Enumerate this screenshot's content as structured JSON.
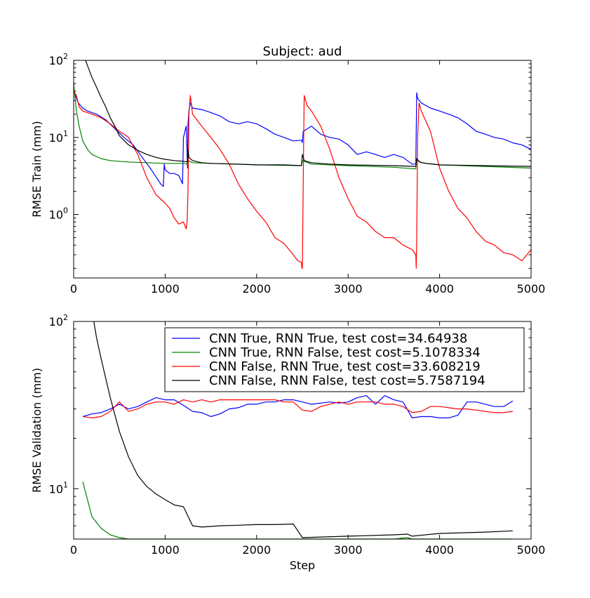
{
  "chart_data": [
    {
      "type": "line",
      "title": "Subject: aud",
      "xlabel": "",
      "ylabel": "RMSE Train (mm)",
      "xlim": [
        0,
        5000
      ],
      "ylim": [
        0.15,
        100
      ],
      "yscale": "log",
      "xticks": [
        "0",
        "1000",
        "2000",
        "3000",
        "4000",
        "5000"
      ],
      "yticks": [
        {
          "value": 1,
          "label": "10",
          "exp": "0"
        },
        {
          "value": 10,
          "label": "10",
          "exp": "1"
        },
        {
          "value": 100,
          "label": "10",
          "exp": "2"
        }
      ],
      "grid": false,
      "series": [
        {
          "color": "#0000ff",
          "x": [
            0,
            50,
            100,
            150,
            250,
            350,
            450,
            550,
            650,
            750,
            850,
            950,
            980,
            990,
            1000,
            1050,
            1100,
            1150,
            1190,
            1200,
            1230,
            1245,
            1250,
            1260,
            1275,
            1300,
            1400,
            1500,
            1600,
            1700,
            1800,
            1900,
            2000,
            2100,
            2200,
            2300,
            2400,
            2490,
            2500,
            2510,
            2600,
            2700,
            2800,
            2900,
            3000,
            3100,
            3200,
            3300,
            3400,
            3500,
            3600,
            3700,
            3740,
            3750,
            3760,
            3800,
            3900,
            4000,
            4100,
            4200,
            4300,
            4400,
            4500,
            4600,
            4700,
            4800,
            4900,
            5000
          ],
          "y": [
            40,
            28,
            24,
            22,
            20,
            17,
            13,
            10,
            8,
            5.5,
            3.8,
            2.5,
            2.3,
            4.5,
            3.8,
            3.4,
            3.4,
            3.2,
            2.5,
            10,
            14,
            4,
            15,
            22,
            28,
            24,
            23,
            21,
            19,
            16,
            15,
            16,
            15,
            13,
            11,
            10,
            9,
            9.2,
            8.6,
            12,
            14,
            11,
            10,
            9.5,
            8,
            6,
            6.5,
            6,
            5.5,
            6,
            5.5,
            4.5,
            4.5,
            38,
            32,
            28,
            24,
            22,
            20,
            18,
            15,
            12,
            11,
            10,
            9.5,
            8.5,
            8,
            7
          ]
        },
        {
          "color": "#008000",
          "x": [
            0,
            30,
            60,
            100,
            150,
            200,
            300,
            400,
            600,
            800,
            1000,
            1200,
            1245,
            1250,
            1300,
            1500,
            2000,
            2490,
            2500,
            2600,
            3000,
            3500,
            3740,
            3750,
            3800,
            4000,
            4500,
            5000
          ],
          "y": [
            50,
            22,
            14,
            9,
            7,
            6,
            5.3,
            5,
            4.8,
            4.7,
            4.6,
            4.6,
            4.5,
            5,
            4.7,
            4.6,
            4.4,
            4.3,
            5,
            4.5,
            4.3,
            4.1,
            3.9,
            5.2,
            4.7,
            4.4,
            4.2,
            4
          ]
        },
        {
          "color": "#ff0000",
          "x": [
            0,
            30,
            60,
            100,
            150,
            200,
            300,
            400,
            500,
            550,
            600,
            700,
            800,
            900,
            1000,
            1050,
            1100,
            1150,
            1200,
            1230,
            1240,
            1250,
            1260,
            1275,
            1300,
            1400,
            1500,
            1600,
            1700,
            1800,
            1900,
            2000,
            2100,
            2200,
            2300,
            2400,
            2450,
            2490,
            2495,
            2500,
            2510,
            2520,
            2550,
            2600,
            2700,
            2800,
            2900,
            3000,
            3100,
            3200,
            3300,
            3400,
            3500,
            3600,
            3700,
            3740,
            3745,
            3750,
            3760,
            3775,
            3800,
            3900,
            4000,
            4100,
            4200,
            4300,
            4400,
            4500,
            4600,
            4700,
            4800,
            4900,
            5000
          ],
          "y": [
            40,
            35,
            25,
            22,
            21,
            20,
            18,
            15,
            12,
            11,
            10,
            6,
            3,
            1.8,
            1.4,
            1.2,
            0.9,
            0.75,
            0.8,
            0.65,
            0.8,
            2,
            20,
            35,
            20,
            14,
            10,
            7,
            4.5,
            2.5,
            1.6,
            1.1,
            0.8,
            0.5,
            0.42,
            0.3,
            0.25,
            0.24,
            0.2,
            0.2,
            3,
            35,
            26,
            22,
            14,
            7,
            3,
            1.6,
            0.95,
            0.8,
            0.6,
            0.5,
            0.5,
            0.4,
            0.35,
            0.3,
            0.2,
            0.5,
            10,
            28,
            22,
            12,
            4,
            2,
            1.2,
            0.9,
            0.6,
            0.45,
            0.4,
            0.32,
            0.3,
            0.25,
            0.35
          ]
        },
        {
          "color": "#000000",
          "x": [
            130,
            160,
            200,
            250,
            300,
            350,
            400,
            450,
            500,
            600,
            700,
            800,
            900,
            1000,
            1100,
            1200,
            1245,
            1250,
            1260,
            1300,
            1400,
            1500,
            1800,
            2000,
            2300,
            2490,
            2500,
            2520,
            2600,
            2800,
            3000,
            3500,
            3740,
            3750,
            3780,
            3850,
            4000,
            4500,
            5000
          ],
          "y": [
            100,
            80,
            60,
            45,
            33,
            25,
            18,
            14,
            10.5,
            8,
            6.8,
            6,
            5.5,
            5.2,
            5,
            4.9,
            4.8,
            7,
            5.5,
            5,
            4.7,
            4.6,
            4.5,
            4.4,
            4.4,
            4.3,
            6,
            5,
            4.7,
            4.5,
            4.4,
            4.3,
            4.2,
            5.3,
            4.8,
            4.6,
            4.4,
            4.3,
            4.2
          ]
        }
      ]
    },
    {
      "type": "line",
      "title": "",
      "xlabel": "Step",
      "ylabel": "RMSE Validation (mm)",
      "xlim": [
        0,
        5000
      ],
      "ylim": [
        5,
        100
      ],
      "yscale": "log",
      "xticks": [
        "0",
        "1000",
        "2000",
        "3000",
        "4000",
        "5000"
      ],
      "yticks": [
        {
          "value": 10,
          "label": "10",
          "exp": "1"
        },
        {
          "value": 100,
          "label": "10",
          "exp": "2"
        }
      ],
      "grid": false,
      "legend_position": "top-right",
      "series": [
        {
          "name": "CNN True, RNN True, test cost=34.64938",
          "color": "#0000ff",
          "x": [
            100,
            200,
            300,
            400,
            500,
            600,
            700,
            800,
            900,
            1000,
            1100,
            1200,
            1300,
            1400,
            1500,
            1600,
            1700,
            1800,
            1900,
            2000,
            2100,
            2200,
            2300,
            2400,
            2500,
            2600,
            2700,
            2800,
            2900,
            3000,
            3100,
            3200,
            3300,
            3400,
            3500,
            3600,
            3700,
            3800,
            3900,
            4000,
            4100,
            4200,
            4300,
            4400,
            4500,
            4600,
            4700,
            4800
          ],
          "y": [
            27,
            28,
            28.5,
            30,
            32,
            30,
            31,
            33,
            35,
            34,
            34,
            31.5,
            29,
            28.5,
            27,
            28,
            30,
            30.5,
            32,
            32,
            33,
            33,
            34,
            34,
            33,
            32,
            32.5,
            33,
            32.5,
            33,
            35,
            36,
            32,
            36,
            34,
            33,
            26.5,
            27,
            27,
            26.5,
            26.5,
            27.5,
            33,
            33,
            32,
            31,
            31,
            33.5
          ]
        },
        {
          "name": "CNN True, RNN False, test cost=5.1078334",
          "color": "#008000",
          "x": [
            100,
            200,
            300,
            400,
            500,
            600,
            700,
            800,
            900,
            1000,
            1100,
            1200,
            1300,
            1400,
            1500,
            2000,
            2500,
            3000,
            3500,
            3650,
            3700,
            4000,
            4500,
            4800
          ],
          "y": [
            11,
            6.8,
            5.8,
            5.3,
            5.1,
            5.0,
            4.95,
            4.9,
            4.88,
            4.87,
            4.86,
            4.85,
            4.8,
            4.8,
            4.82,
            4.85,
            4.9,
            4.92,
            5.0,
            5.1,
            4.7,
            4.8,
            4.9,
            5.0
          ]
        },
        {
          "name": "CNN False, RNN True, test cost=33.608219",
          "color": "#ff0000",
          "x": [
            100,
            200,
            300,
            400,
            500,
            550,
            600,
            700,
            800,
            900,
            1000,
            1100,
            1200,
            1300,
            1400,
            1500,
            1600,
            1700,
            1800,
            1900,
            2000,
            2100,
            2200,
            2300,
            2400,
            2500,
            2600,
            2700,
            2800,
            2900,
            3000,
            3100,
            3200,
            3300,
            3400,
            3500,
            3600,
            3700,
            3800,
            3900,
            4000,
            4100,
            4200,
            4300,
            4400,
            4500,
            4600,
            4700,
            4800
          ],
          "y": [
            27,
            26.5,
            27,
            29,
            33,
            31,
            29,
            30,
            32,
            33,
            33,
            32,
            34,
            33,
            34,
            33,
            34,
            34,
            34,
            34,
            34,
            34,
            34,
            33,
            33,
            29.5,
            29,
            31,
            32,
            33,
            32,
            33,
            33,
            33,
            32,
            32,
            31,
            28.5,
            29,
            31,
            31,
            30.5,
            30,
            30,
            29.5,
            29,
            28.5,
            28.5,
            29
          ]
        },
        {
          "name": "CNN False, RNN False, test cost=5.7587194",
          "color": "#000000",
          "x": [
            220,
            250,
            300,
            400,
            500,
            600,
            700,
            800,
            900,
            1000,
            1100,
            1200,
            1300,
            1400,
            1500,
            1600,
            1800,
            2000,
            2200,
            2400,
            2500,
            3000,
            3500,
            3650,
            3700,
            4000,
            4500,
            4800
          ],
          "y": [
            100,
            80,
            60,
            35,
            22,
            15.5,
            12,
            10.3,
            9.3,
            8.6,
            8.0,
            7.8,
            6.0,
            5.9,
            5.95,
            6.0,
            6.05,
            6.1,
            6.1,
            6.15,
            5.1,
            5.2,
            5.3,
            5.35,
            5.2,
            5.4,
            5.5,
            5.6
          ]
        }
      ]
    }
  ]
}
